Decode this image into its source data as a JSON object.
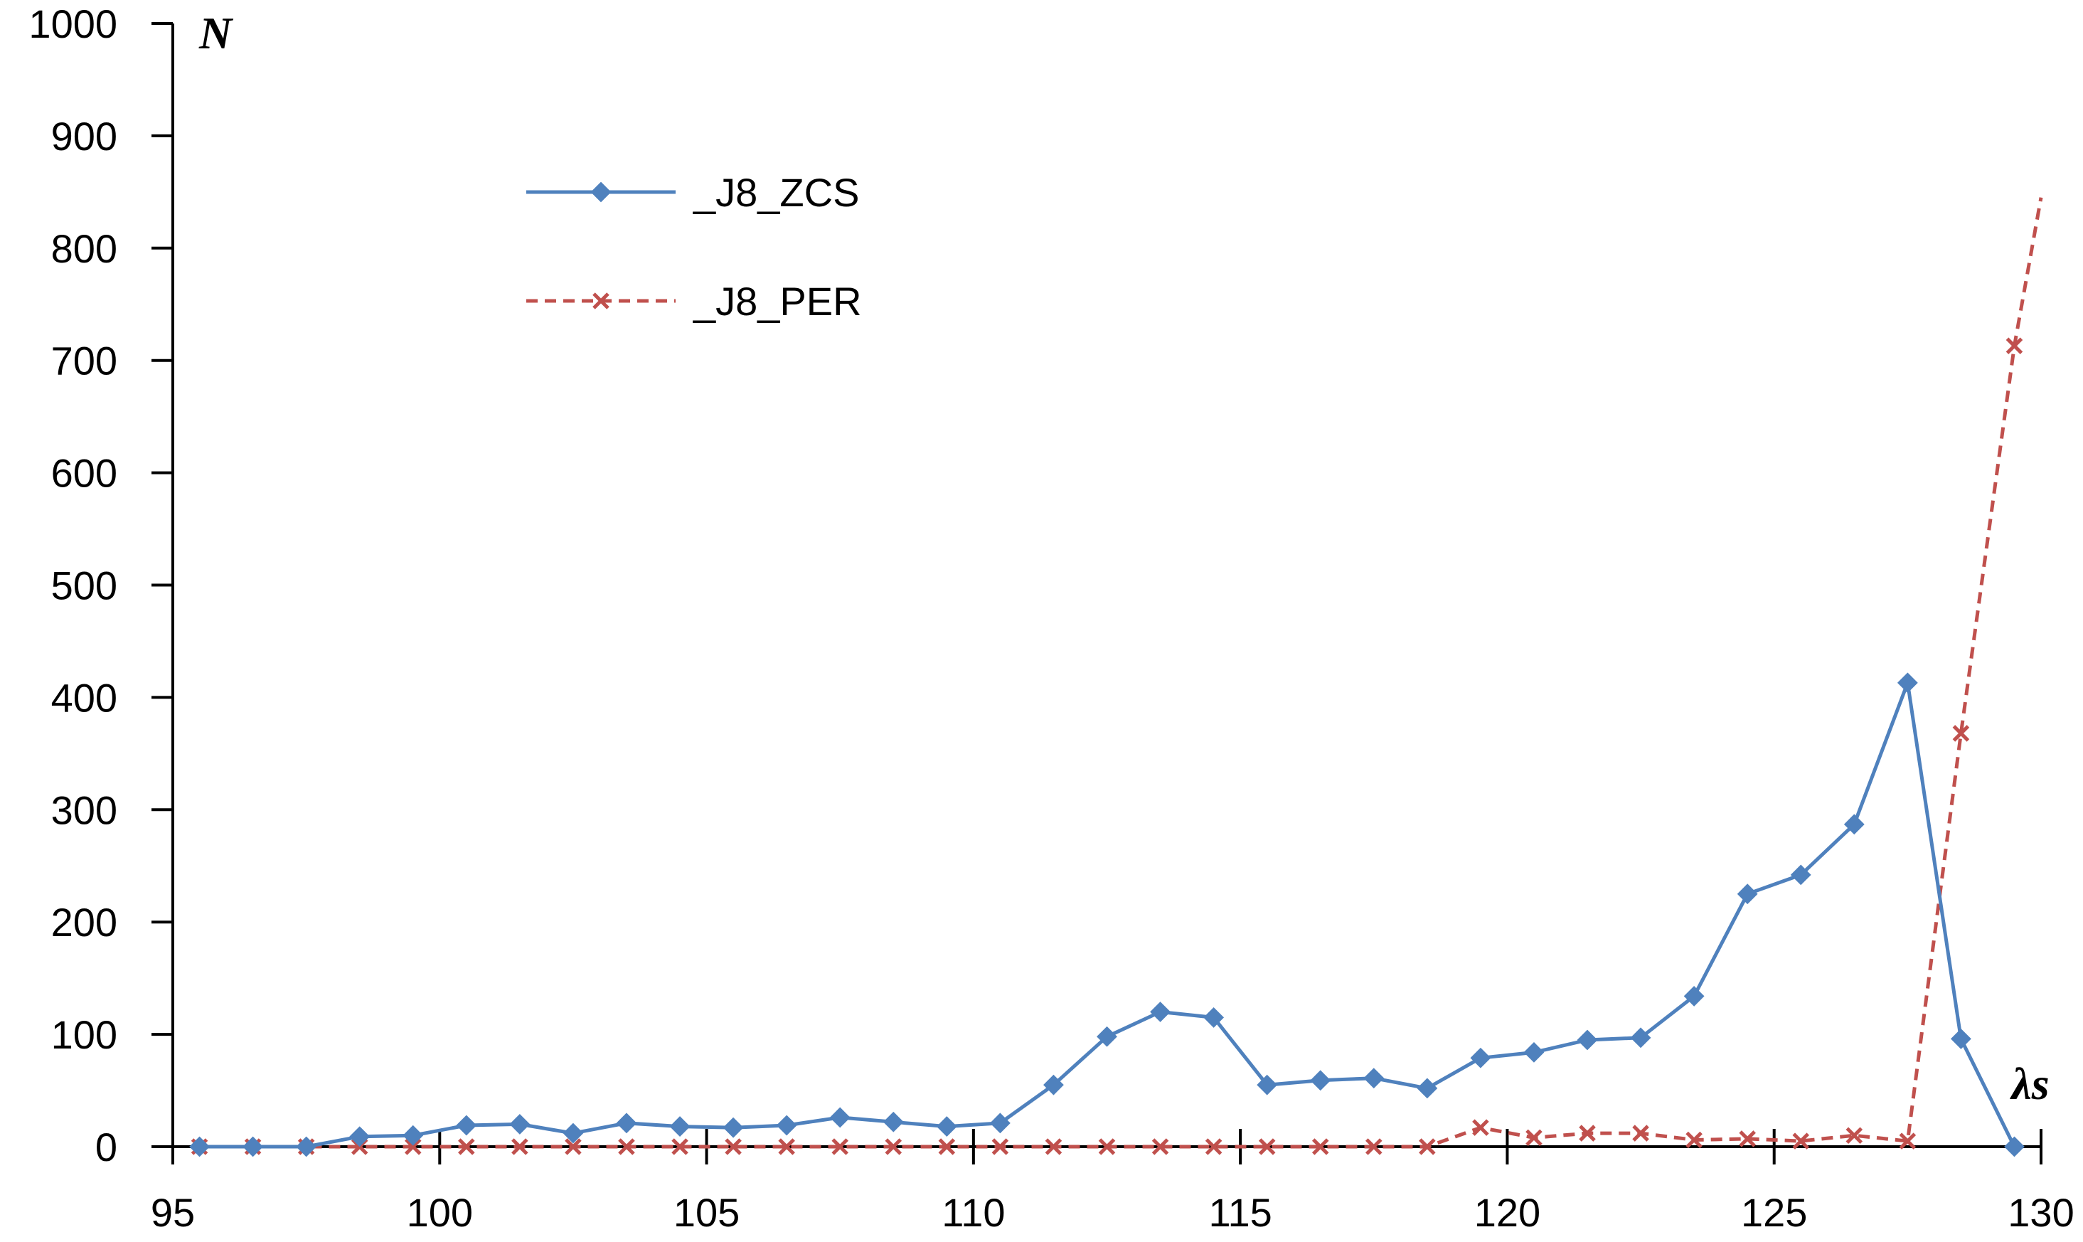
{
  "chart_data": {
    "type": "line",
    "title": "",
    "xlabel": "λs",
    "ylabel": "N",
    "xlim": [
      95,
      130
    ],
    "ylim": [
      0,
      1000
    ],
    "xticks": [
      95,
      100,
      105,
      110,
      115,
      120,
      125,
      130
    ],
    "yticks": [
      0,
      100,
      200,
      300,
      400,
      500,
      600,
      700,
      800,
      900,
      1000
    ],
    "grid": false,
    "legend": "top-left",
    "series": [
      {
        "name": "_J8_ZCS",
        "color": "#4F81BD",
        "marker": "diamond",
        "dash": "solid",
        "x": [
          95.5,
          96.5,
          97.5,
          98.5,
          99.5,
          100.5,
          101.5,
          102.5,
          103.5,
          104.5,
          105.5,
          106.5,
          107.5,
          108.5,
          109.5,
          110.5,
          111.5,
          112.5,
          113.5,
          114.5,
          115.5,
          116.5,
          117.5,
          118.5,
          119.5,
          120.5,
          121.5,
          122.5,
          123.5,
          124.5,
          125.5,
          126.5,
          127.5,
          128.5,
          129.5
        ],
        "y": [
          0,
          0,
          0,
          9,
          10,
          19,
          20,
          12,
          21,
          18,
          17,
          19,
          26,
          22,
          18,
          21,
          55,
          98,
          120,
          115,
          55,
          59,
          61,
          52,
          79,
          84,
          95,
          97,
          134,
          225,
          242,
          287,
          413,
          96,
          0
        ]
      },
      {
        "name": "_J8_PER",
        "color": "#C0504D",
        "marker": "x",
        "dash": "dashed",
        "x": [
          95.5,
          96.5,
          97.5,
          98.5,
          99.5,
          100.5,
          101.5,
          102.5,
          103.5,
          104.5,
          105.5,
          106.5,
          107.5,
          108.5,
          109.5,
          110.5,
          111.5,
          112.5,
          113.5,
          114.5,
          115.5,
          116.5,
          117.5,
          118.5,
          119.5,
          120.5,
          121.5,
          122.5,
          123.5,
          124.5,
          125.5,
          126.5,
          127.5,
          128.5,
          129.5,
          130
        ],
        "y": [
          0,
          0,
          0,
          0,
          0,
          0,
          0,
          0,
          0,
          0,
          0,
          0,
          0,
          0,
          0,
          0,
          0,
          0,
          0,
          0,
          0,
          0,
          0,
          0,
          17,
          8,
          12,
          12,
          6,
          7,
          5,
          10,
          5,
          368,
          713,
          845
        ],
        "marker_count": 35
      }
    ]
  }
}
